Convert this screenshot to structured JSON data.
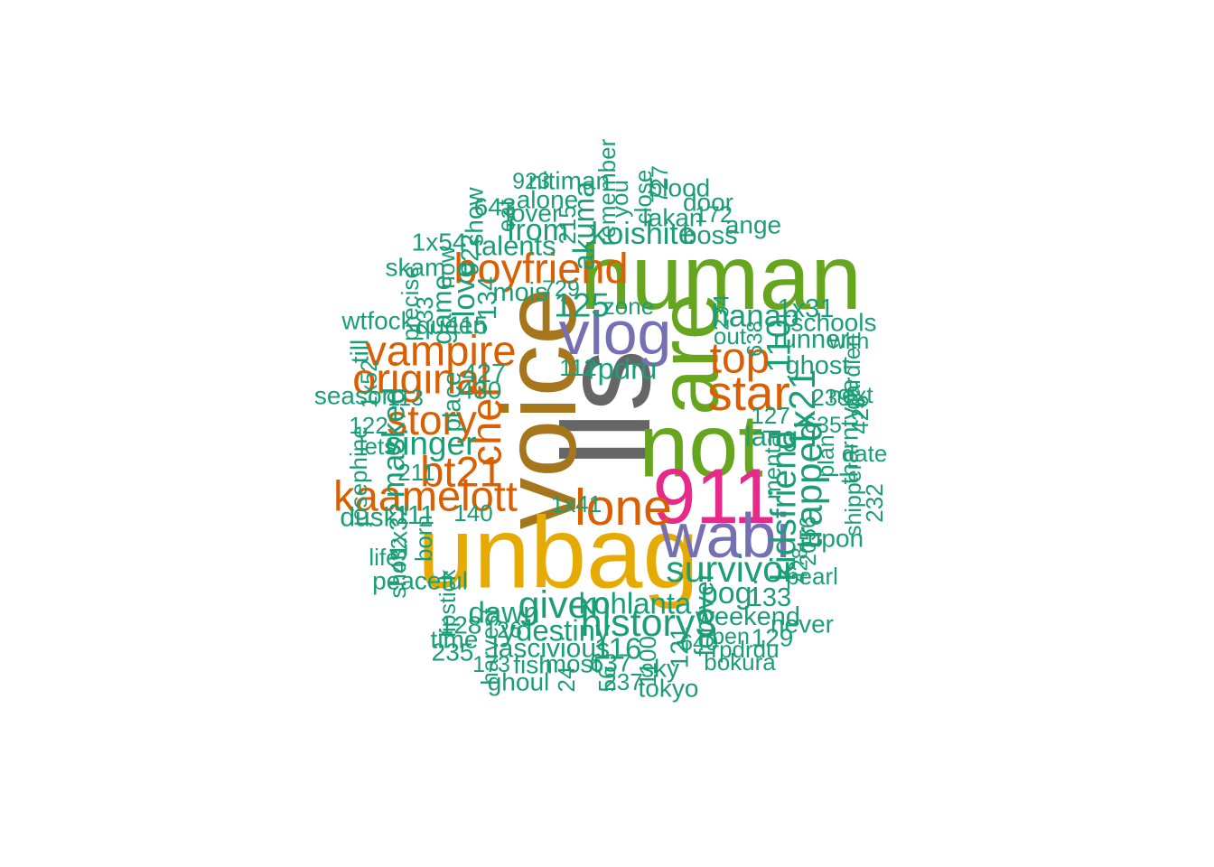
{
  "wordcloud": {
    "colors": {
      "teal": "#1b9e77",
      "orange": "#d95f02",
      "purple": "#7570b3",
      "pink": "#e7298a",
      "green": "#66a61e",
      "gold": "#e6ab02",
      "brown": "#a6761d",
      "gray": "#666666"
    },
    "words": [
      {
        "text": "lls",
        "weight": 100,
        "color": "gray",
        "rotate": true
      },
      {
        "text": "voice",
        "weight": 82,
        "color": "brown",
        "rotate": true
      },
      {
        "text": "unbag",
        "weight": 80,
        "color": "gold",
        "rotate": false
      },
      {
        "text": "human",
        "weight": 72,
        "color": "green",
        "rotate": false
      },
      {
        "text": "not",
        "weight": 70,
        "color": "green",
        "rotate": false
      },
      {
        "text": "are",
        "weight": 66,
        "color": "green",
        "rotate": true
      },
      {
        "text": "911",
        "weight": 60,
        "color": "pink",
        "rotate": false
      },
      {
        "text": "wabi",
        "weight": 48,
        "color": "purple",
        "rotate": false
      },
      {
        "text": "vlog",
        "weight": 46,
        "color": "purple",
        "rotate": false
      },
      {
        "text": "lone",
        "weight": 38,
        "color": "orange",
        "rotate": false
      },
      {
        "text": "star",
        "weight": 36,
        "color": "orange",
        "rotate": false
      },
      {
        "text": "top",
        "weight": 31,
        "color": "orange",
        "rotate": false
      },
      {
        "text": "boyfriend",
        "weight": 30,
        "color": "orange",
        "rotate": false
      },
      {
        "text": "vampire",
        "weight": 30,
        "color": "orange",
        "rotate": false
      },
      {
        "text": "original",
        "weight": 30,
        "color": "orange",
        "rotate": false
      },
      {
        "text": "story",
        "weight": 29,
        "color": "orange",
        "rotate": false
      },
      {
        "text": "chef",
        "weight": 30,
        "color": "orange",
        "rotate": true
      },
      {
        "text": "bt21",
        "weight": 30,
        "color": "orange",
        "rotate": false
      },
      {
        "text": "kaamelott",
        "weight": 30,
        "color": "orange",
        "rotate": false
      },
      {
        "text": "history3",
        "weight": 27,
        "color": "teal",
        "rotate": false
      },
      {
        "text": "survivor",
        "weight": 25,
        "color": "teal",
        "rotate": false
      },
      {
        "text": "given",
        "weight": 27,
        "color": "teal",
        "rotate": false
      },
      {
        "text": "trapped",
        "weight": 26,
        "color": "teal",
        "rotate": true
      },
      {
        "text": "1x21",
        "weight": 25,
        "color": "teal",
        "rotate": true
      },
      {
        "text": "kidsfriend",
        "weight": 24,
        "color": "teal",
        "rotate": true
      },
      {
        "text": "singer",
        "weight": 22,
        "color": "teal",
        "rotate": false
      },
      {
        "text": "125",
        "weight": 22,
        "color": "teal",
        "rotate": false
      },
      {
        "text": "110",
        "weight": 22,
        "color": "teal",
        "rotate": true
      },
      {
        "text": "hanap",
        "weight": 21,
        "color": "teal",
        "rotate": false
      },
      {
        "text": "masked",
        "weight": 21,
        "color": "teal",
        "rotate": true
      },
      {
        "text": "from",
        "weight": 20,
        "color": "teal",
        "rotate": false
      },
      {
        "text": "koishite",
        "weight": 20,
        "color": "teal",
        "rotate": false
      },
      {
        "text": "talents",
        "weight": 18,
        "color": "teal",
        "rotate": false
      },
      {
        "text": "akuma",
        "weight": 19,
        "color": "teal",
        "rotate": true
      },
      {
        "text": "love",
        "weight": 20,
        "color": "teal",
        "rotate": true
      },
      {
        "text": "game",
        "weight": 18,
        "color": "teal",
        "rotate": true
      },
      {
        "text": "rpdru",
        "weight": 19,
        "color": "teal",
        "rotate": false
      },
      {
        "text": "pogi",
        "weight": 20,
        "color": "teal",
        "rotate": false
      },
      {
        "text": "kohlanta",
        "weight": 19,
        "color": "teal",
        "rotate": false
      },
      {
        "text": "dawn",
        "weight": 19,
        "color": "teal",
        "rotate": false
      },
      {
        "text": "ydestiny",
        "weight": 19,
        "color": "teal",
        "rotate": false
      },
      {
        "text": "lascivious",
        "weight": 17,
        "color": "teal",
        "rotate": false
      },
      {
        "text": "116",
        "weight": 19,
        "color": "teal",
        "rotate": false
      },
      {
        "text": "forever",
        "weight": 17,
        "color": "teal",
        "rotate": true
      },
      {
        "text": "weekend",
        "weight": 16,
        "color": "teal",
        "rotate": false
      },
      {
        "text": "133",
        "weight": 16,
        "color": "teal",
        "rotate": false
      },
      {
        "text": "lang",
        "weight": 18,
        "color": "teal",
        "rotate": false
      },
      {
        "text": "ghost",
        "weight": 16,
        "color": "teal",
        "rotate": false
      },
      {
        "text": "runner",
        "weight": 16,
        "color": "teal",
        "rotate": false
      },
      {
        "text": "1x31",
        "weight": 16,
        "color": "teal",
        "rotate": false
      },
      {
        "text": "schools",
        "weight": 15,
        "color": "teal",
        "rotate": false
      },
      {
        "text": "boss",
        "weight": 16,
        "color": "teal",
        "rotate": false
      },
      {
        "text": "lakan",
        "weight": 15,
        "color": "teal",
        "rotate": false
      },
      {
        "text": "door",
        "weight": 15,
        "color": "teal",
        "rotate": false
      },
      {
        "text": "blood",
        "weight": 15,
        "color": "teal",
        "rotate": false
      },
      {
        "text": "ange",
        "weight": 15,
        "color": "teal",
        "rotate": false
      },
      {
        "text": "172",
        "weight": 13,
        "color": "teal",
        "rotate": false
      },
      {
        "text": "nitiman",
        "weight": 15,
        "color": "teal",
        "rotate": false
      },
      {
        "text": "923",
        "weight": 13,
        "color": "teal",
        "rotate": false
      },
      {
        "text": "alone",
        "weight": 15,
        "color": "teal",
        "rotate": false
      },
      {
        "text": "lover",
        "weight": 15,
        "color": "teal",
        "rotate": false
      },
      {
        "text": "643",
        "weight": 15,
        "color": "teal",
        "rotate": false
      },
      {
        "text": "show",
        "weight": 15,
        "color": "teal",
        "rotate": true
      },
      {
        "text": "eat",
        "weight": 14,
        "color": "teal",
        "rotate": true
      },
      {
        "text": "215",
        "weight": 14,
        "color": "teal",
        "rotate": true
      },
      {
        "text": "remember",
        "weight": 14,
        "color": "teal",
        "rotate": true
      },
      {
        "text": "you",
        "weight": 14,
        "color": "teal",
        "rotate": true
      },
      {
        "text": "close",
        "weight": 14,
        "color": "teal",
        "rotate": true
      },
      {
        "text": "727",
        "weight": 13,
        "color": "teal",
        "rotate": true
      },
      {
        "text": "1x54",
        "weight": 15,
        "color": "teal",
        "rotate": false
      },
      {
        "text": "922",
        "weight": 15,
        "color": "teal",
        "rotate": true
      },
      {
        "text": "now",
        "weight": 14,
        "color": "teal",
        "rotate": true
      },
      {
        "text": "skam",
        "weight": 15,
        "color": "teal",
        "rotate": false
      },
      {
        "text": "precise",
        "weight": 14,
        "color": "teal",
        "rotate": true
      },
      {
        "text": "233",
        "weight": 14,
        "color": "teal",
        "rotate": true
      },
      {
        "text": "134",
        "weight": 16,
        "color": "teal",
        "rotate": true
      },
      {
        "text": "mois",
        "weight": 16,
        "color": "teal",
        "rotate": false
      },
      {
        "text": "729",
        "weight": 13,
        "color": "teal",
        "rotate": false
      },
      {
        "text": "zone",
        "weight": 14,
        "color": "teal",
        "rotate": false
      },
      {
        "text": "234",
        "weight": 12,
        "color": "teal",
        "rotate": true
      },
      {
        "text": "queen",
        "weight": 15,
        "color": "teal",
        "rotate": false
      },
      {
        "text": "115",
        "weight": 15,
        "color": "teal",
        "rotate": false
      },
      {
        "text": "wtfock",
        "weight": 15,
        "color": "teal",
        "rotate": false
      },
      {
        "text": "till",
        "weight": 15,
        "color": "teal",
        "rotate": true
      },
      {
        "text": "427",
        "weight": 16,
        "color": "teal",
        "rotate": false
      },
      {
        "text": "112",
        "weight": 14,
        "color": "teal",
        "rotate": false
      },
      {
        "text": "out",
        "weight": 14,
        "color": "teal",
        "rotate": false
      },
      {
        "text": "638",
        "weight": 12,
        "color": "teal",
        "rotate": true
      },
      {
        "text": "with",
        "weight": 13,
        "color": "teal",
        "rotate": false
      },
      {
        "text": "gardien",
        "weight": 13,
        "color": "teal",
        "rotate": true
      },
      {
        "text": "1x52",
        "weight": 13,
        "color": "teal",
        "rotate": true
      },
      {
        "text": "season",
        "weight": 15,
        "color": "teal",
        "rotate": false
      },
      {
        "text": "113",
        "weight": 13,
        "color": "teal",
        "rotate": false
      },
      {
        "text": "430",
        "weight": 15,
        "color": "teal",
        "rotate": false
      },
      {
        "text": "place",
        "weight": 15,
        "color": "teal",
        "rotate": true
      },
      {
        "text": "239",
        "weight": 14,
        "color": "teal",
        "rotate": false
      },
      {
        "text": "next",
        "weight": 14,
        "color": "teal",
        "rotate": false
      },
      {
        "text": "127",
        "weight": 14,
        "color": "teal",
        "rotate": false
      },
      {
        "text": "122",
        "weight": 14,
        "color": "teal",
        "rotate": false
      },
      {
        "text": "635",
        "weight": 13,
        "color": "teal",
        "rotate": false
      },
      {
        "text": "426",
        "weight": 14,
        "color": "teal",
        "rotate": true
      },
      {
        "text": "tharntype",
        "weight": 15,
        "color": "teal",
        "rotate": true
      },
      {
        "text": "plan",
        "weight": 13,
        "color": "teal",
        "rotate": true
      },
      {
        "text": "lets",
        "weight": 14,
        "color": "teal",
        "rotate": false
      },
      {
        "text": "211",
        "weight": 14,
        "color": "teal",
        "rotate": false
      },
      {
        "text": "date",
        "weight": 14,
        "color": "teal",
        "rotate": false
      },
      {
        "text": "mental",
        "weight": 14,
        "color": "teal",
        "rotate": true
      },
      {
        "text": "josephine",
        "weight": 14,
        "color": "teal",
        "rotate": true
      },
      {
        "text": "shipper",
        "weight": 13,
        "color": "teal",
        "rotate": true
      },
      {
        "text": "232",
        "weight": 14,
        "color": "teal",
        "rotate": true
      },
      {
        "text": "1x41",
        "weight": 14,
        "color": "teal",
        "rotate": false
      },
      {
        "text": "dusk",
        "weight": 17,
        "color": "teal",
        "rotate": false
      },
      {
        "text": "111",
        "weight": 16,
        "color": "teal",
        "rotate": false
      },
      {
        "text": "140",
        "weight": 14,
        "color": "teal",
        "rotate": false
      },
      {
        "text": "1x32",
        "weight": 15,
        "color": "teal",
        "rotate": true
      },
      {
        "text": "born",
        "weight": 14,
        "color": "teal",
        "rotate": true
      },
      {
        "text": "upon",
        "weight": 15,
        "color": "teal",
        "rotate": false
      },
      {
        "text": "2056",
        "weight": 13,
        "color": "teal",
        "rotate": true
      },
      {
        "text": "life",
        "weight": 14,
        "color": "teal",
        "rotate": false
      },
      {
        "text": "432",
        "weight": 12,
        "color": "teal",
        "rotate": true
      },
      {
        "text": "shot",
        "weight": 14,
        "color": "teal",
        "rotate": true
      },
      {
        "text": "428",
        "weight": 12,
        "color": "teal",
        "rotate": true
      },
      {
        "text": "pearl",
        "weight": 14,
        "color": "teal",
        "rotate": false
      },
      {
        "text": "peaceful",
        "weight": 15,
        "color": "teal",
        "rotate": false
      },
      {
        "text": "lipstick",
        "weight": 13,
        "color": "teal",
        "rotate": true
      },
      {
        "text": "never",
        "weight": 15,
        "color": "teal",
        "rotate": false
      },
      {
        "text": "128",
        "weight": 15,
        "color": "teal",
        "rotate": false
      },
      {
        "text": "126",
        "weight": 13,
        "color": "teal",
        "rotate": false
      },
      {
        "text": "time",
        "weight": 15,
        "color": "teal",
        "rotate": false
      },
      {
        "text": "ben",
        "weight": 13,
        "color": "teal",
        "rotate": false
      },
      {
        "text": "129",
        "weight": 15,
        "color": "teal",
        "rotate": false
      },
      {
        "text": "harvest",
        "weight": 14,
        "color": "teal",
        "rotate": true
      },
      {
        "text": "1100",
        "weight": 14,
        "color": "teal",
        "rotate": true
      },
      {
        "text": "sky",
        "weight": 15,
        "color": "teal",
        "rotate": false
      },
      {
        "text": "121",
        "weight": 15,
        "color": "teal",
        "rotate": true
      },
      {
        "text": "640",
        "weight": 13,
        "color": "teal",
        "rotate": false
      },
      {
        "text": "rpdrdu",
        "weight": 14,
        "color": "teal",
        "rotate": false
      },
      {
        "text": "235",
        "weight": 15,
        "color": "teal",
        "rotate": false
      },
      {
        "text": "173",
        "weight": 13,
        "color": "teal",
        "rotate": false
      },
      {
        "text": "fish",
        "weight": 15,
        "color": "teal",
        "rotate": false
      },
      {
        "text": "most",
        "weight": 15,
        "color": "teal",
        "rotate": false
      },
      {
        "text": "637",
        "weight": 15,
        "color": "teal",
        "rotate": false
      },
      {
        "text": "bokura",
        "weight": 14,
        "color": "teal",
        "rotate": false
      },
      {
        "text": "ghoul",
        "weight": 15,
        "color": "teal",
        "rotate": false
      },
      {
        "text": "24",
        "weight": 14,
        "color": "teal",
        "rotate": true
      },
      {
        "text": "56",
        "weight": 14,
        "color": "teal",
        "rotate": true
      },
      {
        "text": "237",
        "weight": 14,
        "color": "teal",
        "rotate": false
      },
      {
        "text": "tokyo",
        "weight": 15,
        "color": "teal",
        "rotate": false
      }
    ]
  }
}
